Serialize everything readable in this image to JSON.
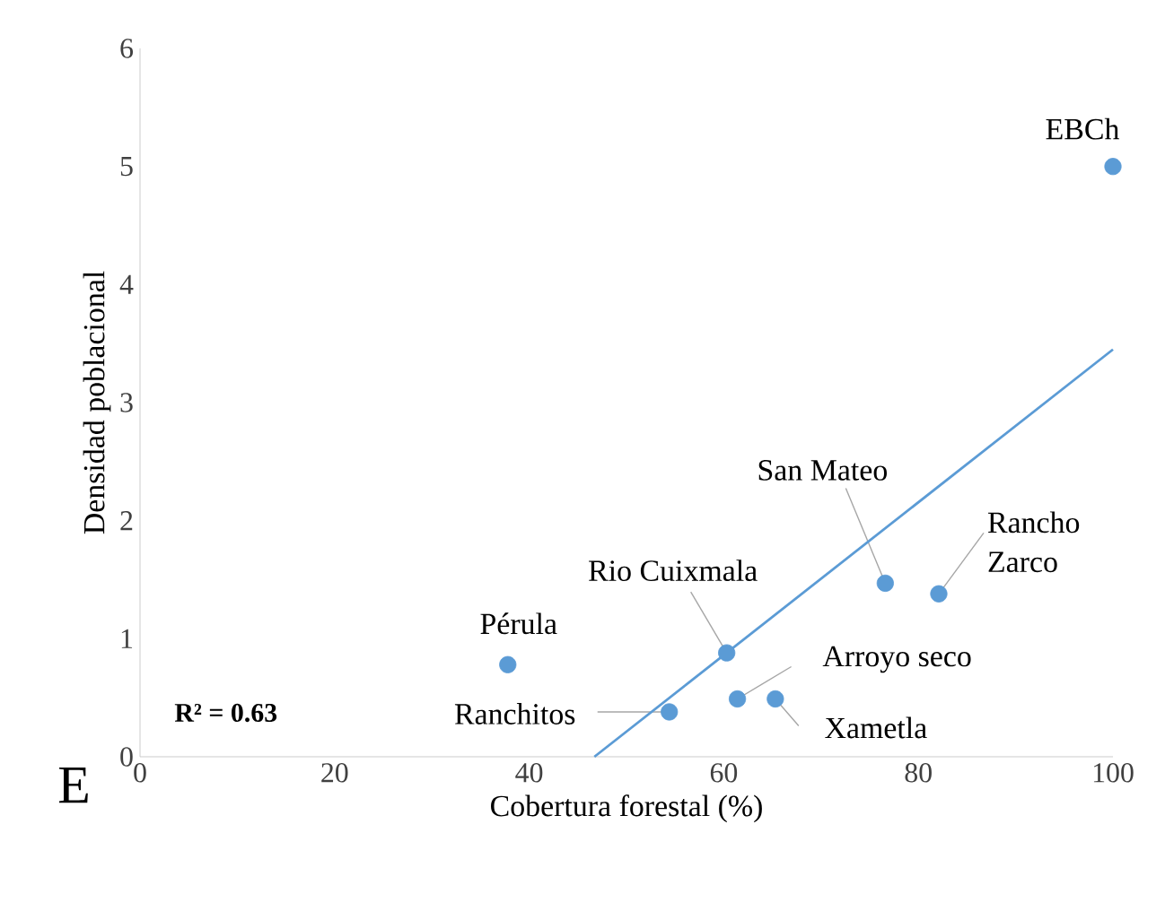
{
  "chart_data": {
    "type": "scatter",
    "xlabel": "Cobertura forestal (%)",
    "ylabel": "Densidad poblacional",
    "xlim": [
      0,
      100
    ],
    "ylim": [
      0,
      6
    ],
    "xticks": [
      0,
      20,
      40,
      60,
      80,
      100
    ],
    "yticks": [
      0,
      1,
      2,
      3,
      4,
      5,
      6
    ],
    "grid": false,
    "series": [
      {
        "type": "scatter",
        "color": "#5b9bd5",
        "marker": "circle",
        "x": [
          100,
          82.1,
          76.6,
          60.3,
          37.8,
          54.4,
          61.4,
          65.3
        ],
        "values": [
          5.0,
          1.38,
          1.47,
          0.88,
          0.78,
          0.38,
          0.49,
          0.49
        ]
      },
      {
        "type": "line",
        "color": "#5b9bd5",
        "x": [
          46.7,
          100
        ],
        "values": [
          0,
          3.45
        ]
      }
    ],
    "annotations": [
      {
        "text": "EBCh",
        "x": 100,
        "y": 5.0
      },
      {
        "text": "Rancho Zarco",
        "x": 82.1,
        "y": 1.38
      },
      {
        "text": "San Mateo",
        "x": 76.6,
        "y": 1.47
      },
      {
        "text": "Rio Cuixmala",
        "x": 60.3,
        "y": 0.88
      },
      {
        "text": "Pérula",
        "x": 37.8,
        "y": 0.78
      },
      {
        "text": "Ranchitos",
        "x": 54.4,
        "y": 0.38
      },
      {
        "text": "Arroyo seco",
        "x": 61.4,
        "y": 0.49
      },
      {
        "text": "Xametla",
        "x": 65.3,
        "y": 0.49
      },
      "R² = 0.63",
      "E"
    ]
  }
}
